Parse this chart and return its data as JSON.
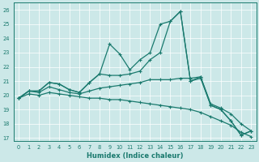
{
  "xlabel": "Humidex (Indice chaleur)",
  "xlim": [
    -0.5,
    23.5
  ],
  "ylim": [
    16.8,
    26.5
  ],
  "yticks": [
    17,
    18,
    19,
    20,
    21,
    22,
    23,
    24,
    25,
    26
  ],
  "xticks": [
    0,
    1,
    2,
    3,
    4,
    5,
    6,
    7,
    8,
    9,
    10,
    11,
    12,
    13,
    14,
    15,
    16,
    17,
    18,
    19,
    20,
    21,
    22,
    23
  ],
  "bg_color": "#cce8e8",
  "line_color": "#1a7a6e",
  "grid_color": "#ffffff",
  "line1": [
    19.8,
    20.3,
    20.3,
    20.9,
    20.8,
    20.4,
    20.2,
    20.9,
    21.5,
    23.6,
    22.9,
    21.8,
    22.5,
    23.0,
    25.0,
    25.2,
    25.9,
    21.0,
    21.3,
    19.3,
    19.0,
    18.2,
    17.2,
    17.5
  ],
  "line2": [
    19.8,
    20.3,
    20.3,
    20.9,
    20.8,
    20.4,
    20.2,
    20.9,
    21.5,
    21.4,
    21.4,
    21.5,
    21.7,
    22.5,
    23.0,
    25.2,
    25.9,
    21.0,
    21.2,
    19.3,
    19.0,
    18.2,
    17.2,
    17.5
  ],
  "line3": [
    19.8,
    20.3,
    20.2,
    20.6,
    20.4,
    20.2,
    20.1,
    20.3,
    20.5,
    20.6,
    20.7,
    20.8,
    20.9,
    21.1,
    21.1,
    21.1,
    21.2,
    21.2,
    21.3,
    19.4,
    19.1,
    18.7,
    18.0,
    17.5
  ],
  "line4": [
    19.8,
    20.1,
    20.0,
    20.2,
    20.1,
    20.0,
    19.9,
    19.8,
    19.8,
    19.7,
    19.7,
    19.6,
    19.5,
    19.4,
    19.3,
    19.2,
    19.1,
    19.0,
    18.8,
    18.5,
    18.2,
    17.9,
    17.4,
    17.1
  ]
}
